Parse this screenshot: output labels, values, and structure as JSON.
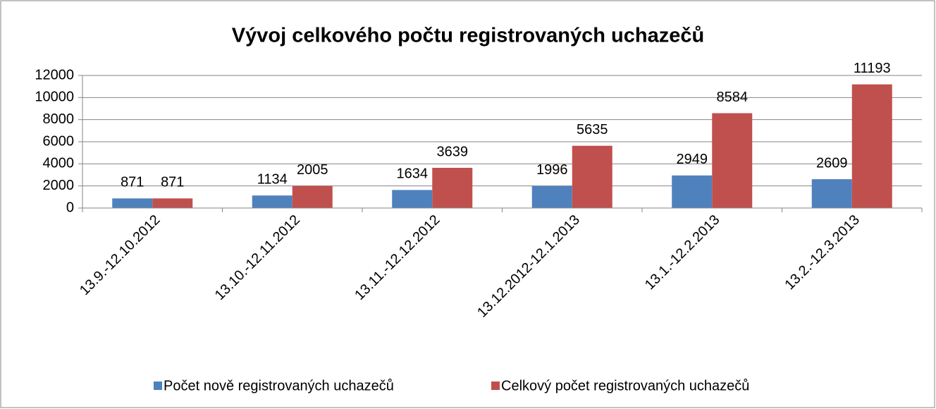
{
  "chart_data": {
    "type": "bar",
    "title": "Vývoj celkového počtu registrovaných uchazečů",
    "categories": [
      "13.9.-12.10.2012",
      "13.10.-12.11.2012",
      "13.11.-12.12.2012",
      "13.12.2012-12.1.2013",
      "13.1.-12.2.2013",
      "13.2.-12.3.2013"
    ],
    "series": [
      {
        "name": "Počet nově registrovaných uchazečů",
        "color": "#4f81bd",
        "values": [
          871,
          1134,
          1634,
          1996,
          2949,
          2609
        ]
      },
      {
        "name": "Celkový počet registrovaných uchazečů",
        "color": "#c0504d",
        "values": [
          871,
          2005,
          3639,
          5635,
          8584,
          11193
        ]
      }
    ],
    "ylim": [
      0,
      12000
    ],
    "yticks": [
      0,
      2000,
      4000,
      6000,
      8000,
      10000,
      12000
    ],
    "grid": true,
    "legend": "bottom"
  }
}
